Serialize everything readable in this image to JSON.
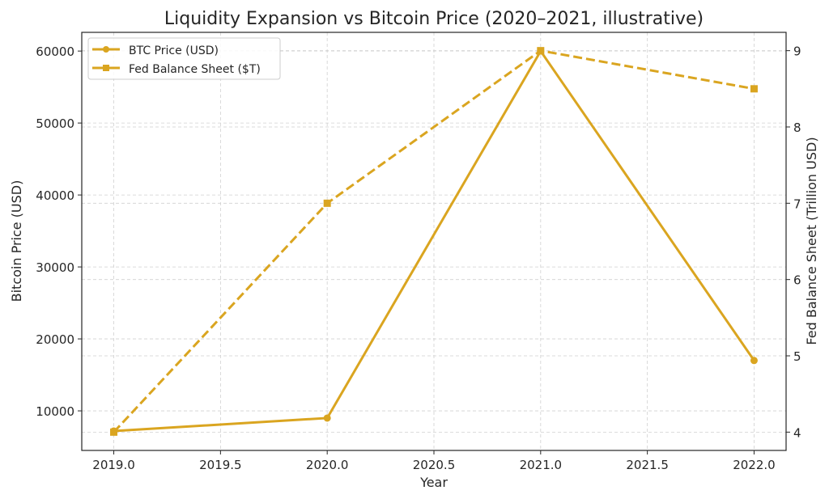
{
  "chart_data": {
    "type": "line",
    "title": "Liquidity Expansion vs Bitcoin Price (2020–2021, illustrative)",
    "xlabel": "Year",
    "ylabel": "Bitcoin Price (USD)",
    "y2label": "Fed Balance Sheet (Trillion USD)",
    "x": [
      2019,
      2020,
      2021,
      2022
    ],
    "xlim": [
      2018.85,
      2022.15
    ],
    "ylim": [
      4500,
      62600
    ],
    "y2lim": [
      3.76,
      9.24
    ],
    "xticks": [
      "2019.0",
      "2019.5",
      "2020.0",
      "2020.5",
      "2021.0",
      "2021.5",
      "2022.0"
    ],
    "yticks": [
      "10000",
      "20000",
      "30000",
      "40000",
      "50000",
      "60000"
    ],
    "y2ticks": [
      "4",
      "5",
      "6",
      "7",
      "8",
      "9"
    ],
    "grid": true,
    "legend_position": "top-left",
    "series": [
      {
        "name": "BTC Price (USD)",
        "axis": "left",
        "values": [
          7200,
          9000,
          60000,
          17000
        ],
        "color": "#DAA520",
        "marker": "circle",
        "linestyle": "solid"
      },
      {
        "name": "Fed Balance Sheet ($T)",
        "axis": "right",
        "values": [
          4.0,
          7.0,
          9.0,
          8.5
        ],
        "color": "#DAA520",
        "marker": "square",
        "linestyle": "dashed"
      }
    ]
  }
}
